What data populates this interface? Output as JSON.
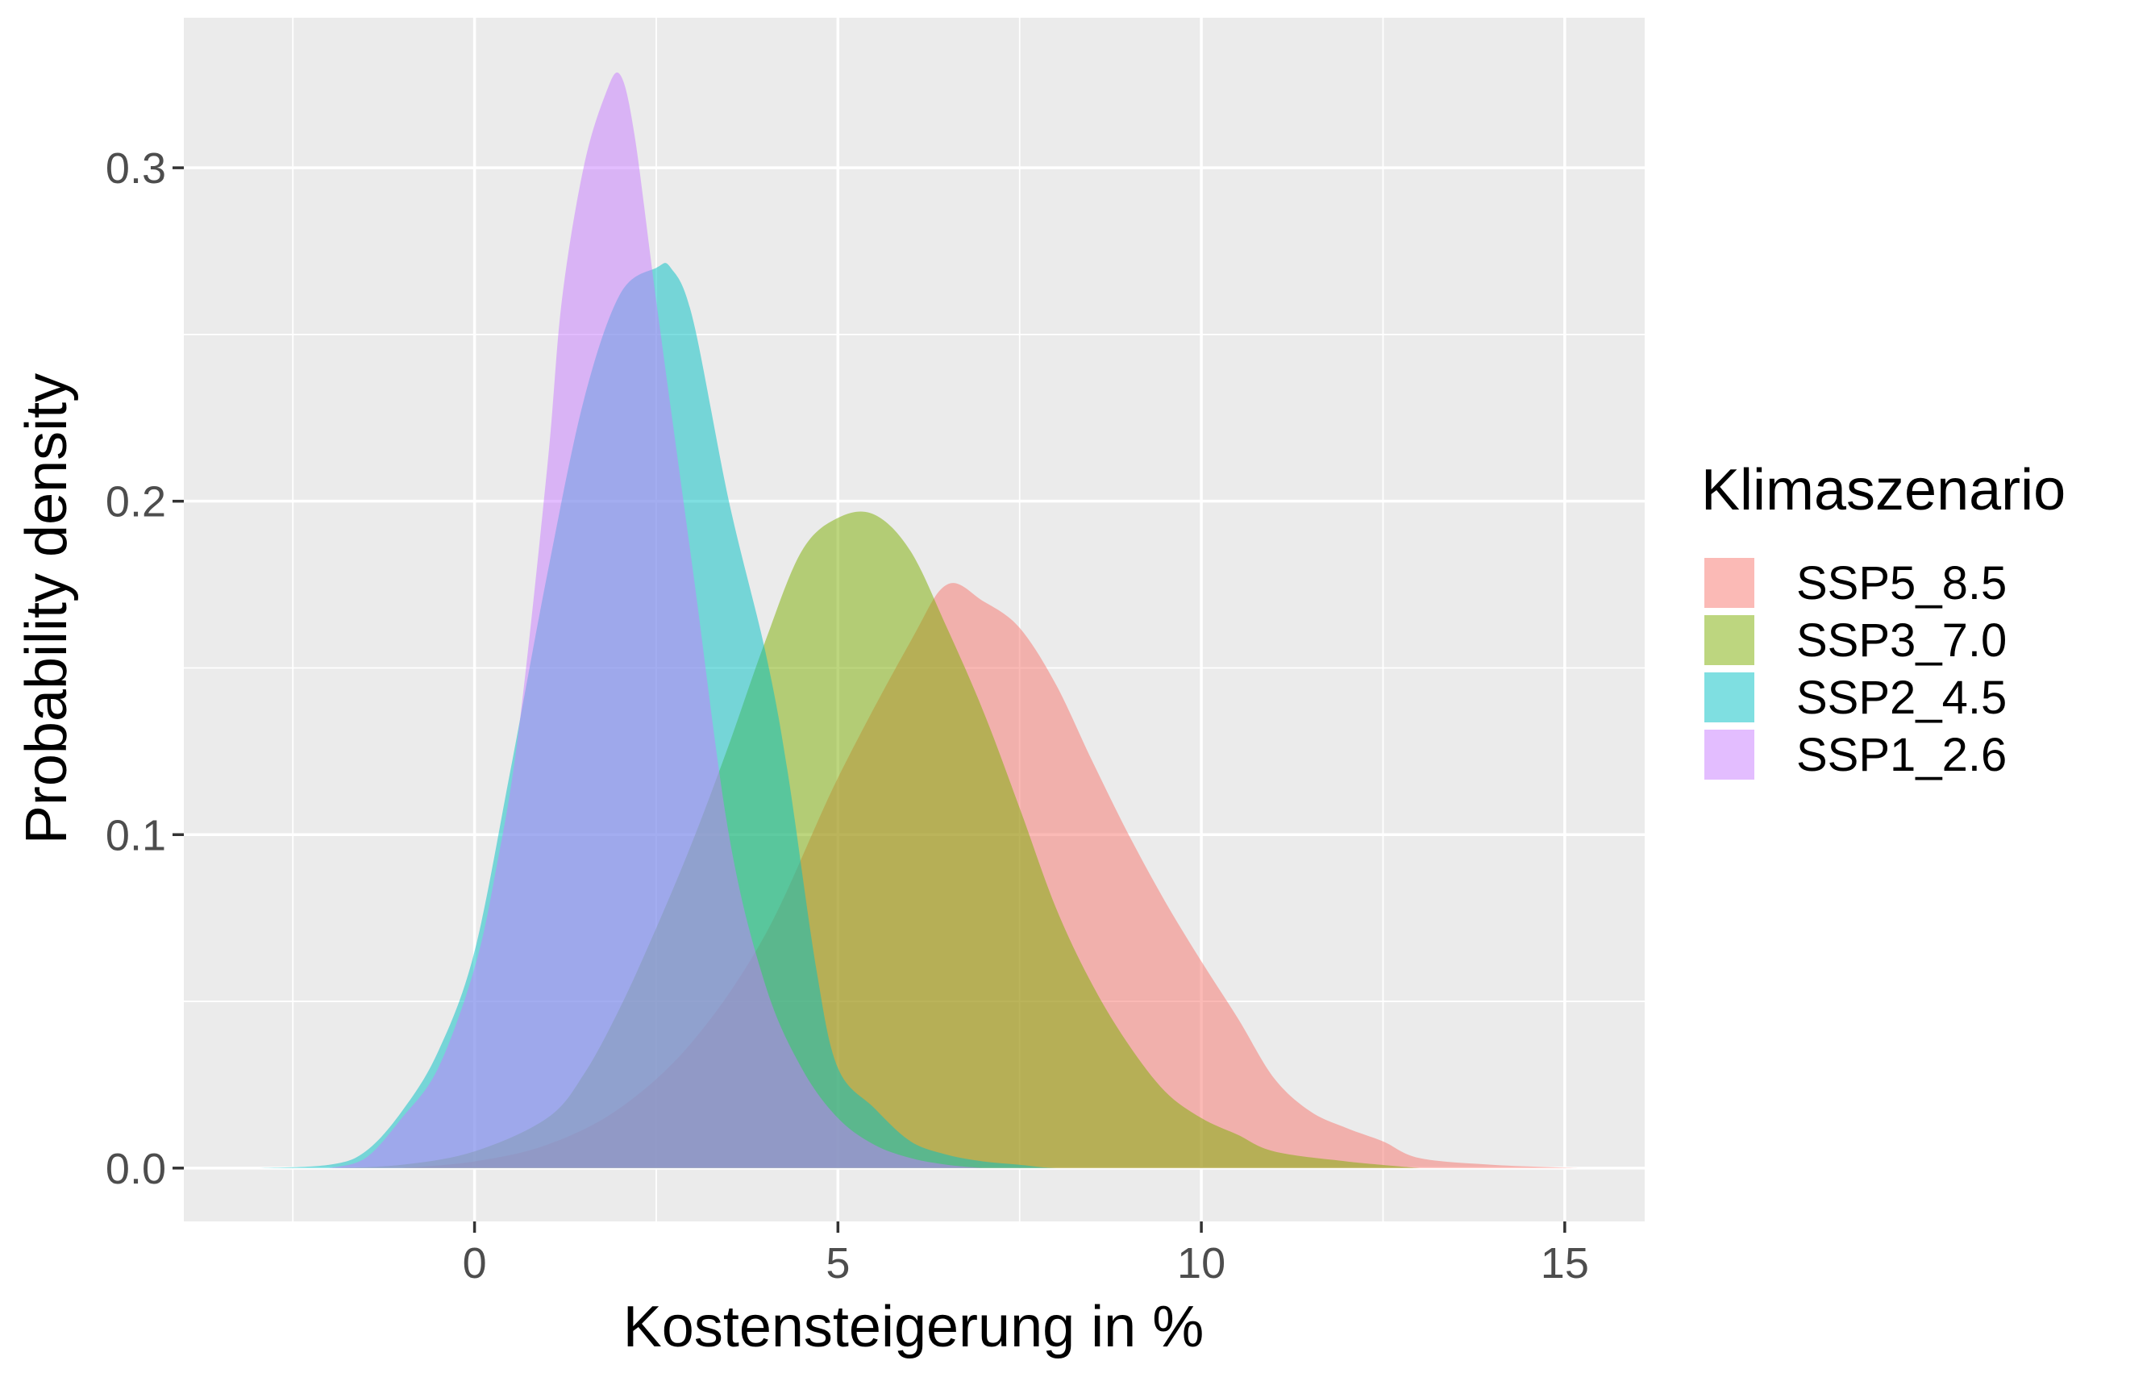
{
  "chart_data": {
    "type": "area",
    "subtype": "density",
    "xlabel": "Kostensteigerung in %",
    "ylabel": "Probability density",
    "xlim": [
      -4.0,
      16.1
    ],
    "ylim": [
      -0.016,
      0.345
    ],
    "x_ticks": [
      0,
      5,
      10,
      15
    ],
    "x_tick_labels": [
      "0",
      "5",
      "10",
      "15"
    ],
    "y_ticks": [
      0.0,
      0.1,
      0.2,
      0.3
    ],
    "y_tick_labels": [
      "0.0",
      "0.1",
      "0.2",
      "0.3"
    ],
    "grid": true,
    "legend": {
      "title": "Klimaszenario",
      "position": "right",
      "items": [
        "SSP5_8.5",
        "SSP3_7.0",
        "SSP2_4.5",
        "SSP1_2.6"
      ]
    },
    "series": [
      {
        "name": "SSP5_8.5",
        "color": "#F8766D",
        "x": [
          -1.0,
          0,
          1,
          2,
          3,
          4,
          5,
          6,
          6.5,
          7,
          7.5,
          8,
          8.5,
          9,
          9.5,
          10,
          10.5,
          11,
          11.5,
          12,
          12.5,
          13,
          14,
          15.2
        ],
        "y": [
          0.0,
          0.002,
          0.007,
          0.018,
          0.038,
          0.07,
          0.117,
          0.158,
          0.175,
          0.17,
          0.162,
          0.145,
          0.122,
          0.1,
          0.08,
          0.062,
          0.045,
          0.027,
          0.017,
          0.012,
          0.008,
          0.003,
          0.001,
          0.0
        ]
      },
      {
        "name": "SSP3_7.0",
        "color": "#7CAE00",
        "x": [
          -2.0,
          -1,
          0,
          1,
          1.5,
          2,
          2.5,
          3,
          3.5,
          4,
          4.5,
          5,
          5.5,
          6,
          6.5,
          7,
          7.5,
          8,
          8.5,
          9,
          9.5,
          10,
          10.5,
          11,
          12,
          13
        ],
        "y": [
          0.0,
          0.001,
          0.005,
          0.015,
          0.028,
          0.048,
          0.072,
          0.098,
          0.127,
          0.158,
          0.185,
          0.195,
          0.196,
          0.185,
          0.162,
          0.137,
          0.108,
          0.078,
          0.055,
          0.037,
          0.023,
          0.015,
          0.01,
          0.005,
          0.002,
          0.0
        ]
      },
      {
        "name": "SSP2_4.5",
        "color": "#00BFC4",
        "x": [
          -3.0,
          -2,
          -1.5,
          -1,
          -0.5,
          0,
          0.5,
          1,
          1.5,
          2,
          2.5,
          2.7,
          3,
          3.5,
          4,
          4.3,
          4.7,
          5,
          5.5,
          6,
          6.5,
          7,
          7.5,
          8,
          9
        ],
        "y": [
          0.0,
          0.001,
          0.005,
          0.017,
          0.035,
          0.065,
          0.12,
          0.178,
          0.23,
          0.262,
          0.27,
          0.27,
          0.255,
          0.2,
          0.155,
          0.12,
          0.06,
          0.03,
          0.018,
          0.008,
          0.004,
          0.002,
          0.001,
          0.0,
          0.0
        ]
      },
      {
        "name": "SSP1_2.6",
        "color": "#C77CFF",
        "x": [
          -2.0,
          -1.5,
          -1,
          -0.5,
          0,
          0.3,
          0.6,
          1,
          1.2,
          1.5,
          1.8,
          2,
          2.2,
          2.5,
          3,
          3.5,
          4,
          4.5,
          5,
          5.5,
          6,
          6.5,
          7
        ],
        "y": [
          0.0,
          0.003,
          0.015,
          0.03,
          0.06,
          0.09,
          0.13,
          0.21,
          0.26,
          0.3,
          0.322,
          0.328,
          0.31,
          0.26,
          0.18,
          0.1,
          0.055,
          0.03,
          0.015,
          0.007,
          0.003,
          0.001,
          0.0
        ]
      }
    ]
  }
}
